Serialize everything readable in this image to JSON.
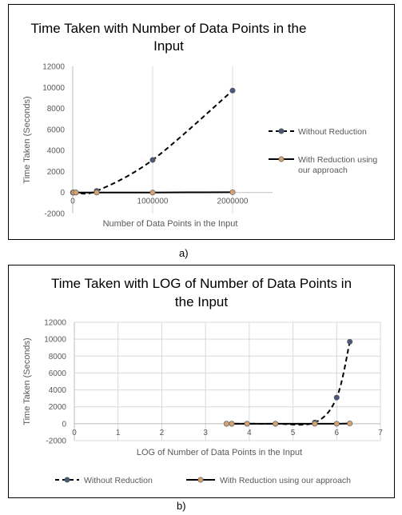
{
  "figure": {
    "caption_a": "a)",
    "caption_b": "b)"
  },
  "chart_data": [
    {
      "type": "scatter",
      "title": "Time Taken with Number of Data Points in the Input",
      "title_lines": [
        "Time Taken with Number of Data Points in the",
        "Input"
      ],
      "xlabel": "Number  of Data Points in the Input",
      "ylabel": "Time Taken (Seconds)",
      "xlim": [
        0,
        2500000
      ],
      "ylim": [
        -2000,
        12000
      ],
      "x_ticks": [
        0,
        1000000,
        2000000
      ],
      "x_tick_labels": [
        "0",
        "1000000",
        "2000000"
      ],
      "y_ticks": [
        -2000,
        0,
        2000,
        4000,
        6000,
        8000,
        10000,
        12000
      ],
      "grid": "vertical",
      "legend": "right",
      "series": [
        {
          "name": "Without Reduction",
          "style": "dashed",
          "color": "#000000",
          "marker_color": "#4a5a78",
          "x": [
            3000,
            5000,
            10000,
            40000,
            300000,
            1000000,
            2000000
          ],
          "y": [
            0,
            0,
            0,
            0,
            150,
            3100,
            9700
          ]
        },
        {
          "name": "With Reduction using our approach",
          "legend_lines": [
            "With Reduction using",
            "our approach"
          ],
          "style": "solid",
          "color": "#000000",
          "marker_color": "#d4a373",
          "x": [
            3000,
            5000,
            10000,
            40000,
            300000,
            1000000,
            2000000
          ],
          "y": [
            0,
            0,
            0,
            0,
            0,
            0,
            30
          ]
        }
      ]
    },
    {
      "type": "scatter",
      "title": "Time Taken with LOG of Number of Data Points in the Input",
      "title_lines": [
        "Time Taken with LOG of Number of Data Points in",
        "the Input"
      ],
      "xlabel": "LOG of Number  of Data Points in the Input",
      "ylabel": "Time Taken (Seconds)",
      "xlim": [
        0,
        7
      ],
      "ylim": [
        -2000,
        12000
      ],
      "x_ticks": [
        0,
        1,
        2,
        3,
        4,
        5,
        6,
        7
      ],
      "x_tick_labels": [
        "0",
        "1",
        "2",
        "3",
        "4",
        "5",
        "6",
        "7"
      ],
      "y_ticks": [
        -2000,
        0,
        2000,
        4000,
        6000,
        8000,
        10000,
        12000
      ],
      "grid": "both",
      "legend": "bottom",
      "series": [
        {
          "name": "Without Reduction",
          "style": "dashed",
          "color": "#000000",
          "marker_color": "#4a5a78",
          "x": [
            3.48,
            3.6,
            3.95,
            4.6,
            5.5,
            6.0,
            6.3
          ],
          "y": [
            0,
            0,
            0,
            0,
            150,
            3100,
            9700
          ]
        },
        {
          "name": "With Reduction using our approach",
          "style": "solid",
          "color": "#000000",
          "marker_color": "#d4a373",
          "x": [
            3.48,
            3.6,
            3.95,
            4.6,
            5.5,
            6.0,
            6.3
          ],
          "y": [
            0,
            0,
            0,
            0,
            0,
            0,
            30
          ]
        }
      ]
    }
  ]
}
